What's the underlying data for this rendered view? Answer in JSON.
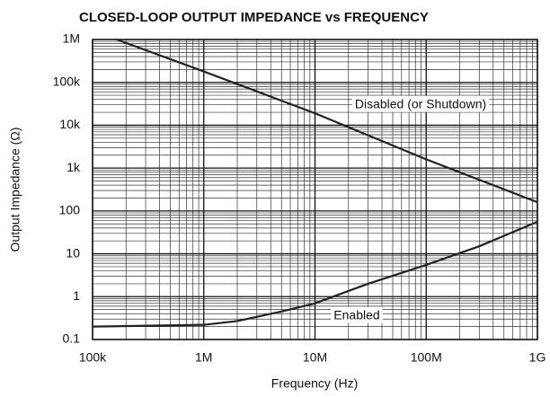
{
  "chart_data": {
    "type": "line",
    "title": "CLOSED-LOOP OUTPUT IMPEDANCE vs FREQUENCY",
    "x_label": "Frequency (Hz)",
    "y_label": "Output Impedance (Ω)",
    "xscale": "log",
    "yscale": "log",
    "grid": true,
    "xlim": [
      100000,
      1000000000
    ],
    "ylim": [
      0.1,
      1000000
    ],
    "xticks": [
      {
        "value": 100000,
        "label": "100k"
      },
      {
        "value": 1000000,
        "label": "1M"
      },
      {
        "value": 10000000,
        "label": "10M"
      },
      {
        "value": 100000000,
        "label": "100M"
      },
      {
        "value": 1000000000,
        "label": "1G"
      }
    ],
    "yticks": [
      {
        "value": 0.1,
        "label": "0.1"
      },
      1,
      10,
      100,
      {
        "value": 1000,
        "label": "1k"
      },
      {
        "value": 10000,
        "label": "10k"
      },
      {
        "value": 100000,
        "label": "100k"
      },
      {
        "value": 1000000,
        "label": "1M"
      }
    ],
    "series": [
      {
        "name": "Disabled (or Shutdown)",
        "color": "#222222",
        "x": [
          165000,
          1000000,
          10000000,
          100000000,
          1000000000
        ],
        "values": [
          1000000,
          180000,
          19000,
          1600,
          160
        ]
      },
      {
        "name": "Enabled",
        "color": "#222222",
        "x": [
          100000,
          1000000,
          2000000,
          5000000,
          10000000,
          30000000,
          100000000,
          300000000,
          1000000000
        ],
        "values": [
          0.2,
          0.22,
          0.27,
          0.45,
          0.7,
          2,
          5.5,
          15,
          56
        ]
      }
    ]
  }
}
